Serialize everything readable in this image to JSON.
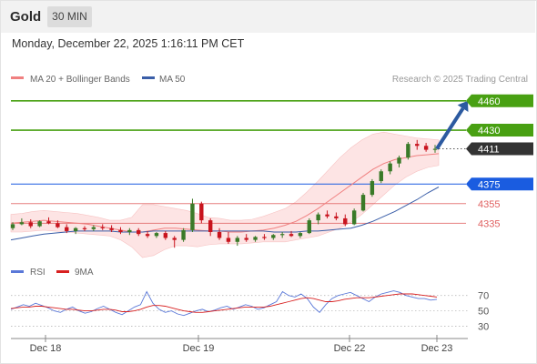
{
  "header": {
    "instrument": "Gold",
    "interval": "30 MIN",
    "timestamp": "Monday, December 22, 2025 1:16:11 PM CET"
  },
  "legend": {
    "ma20": "MA 20 + Bollinger Bands",
    "ma50": "MA 50",
    "credit": "Research © 2025 Trading Central",
    "rsi": "RSI",
    "rsi_ma": "9MA"
  },
  "colors": {
    "up": "#3a7a28",
    "down": "#c8141e",
    "ma20": "#f08080",
    "ma50": "#3a5ea8",
    "band_fill": "#fde0e0",
    "resistance": "#48a012",
    "pivot": "#1a5ce0",
    "support": "#e06060",
    "last": "#333333",
    "rsi_line": "#5a78d8",
    "rsi_ma_line": "#d82020"
  },
  "chart_data": [
    {
      "type": "line",
      "title": "",
      "x_ticks": [
        "Dec 18",
        "Dec 19",
        "Dec 22",
        "Dec 23"
      ],
      "y_ticks": [
        4460,
        4430,
        4411,
        4375,
        4355,
        4335
      ],
      "ylim": [
        4300,
        4470
      ],
      "levels": [
        {
          "value": 4460,
          "label": "4460",
          "role": "resistance"
        },
        {
          "value": 4430,
          "label": "4430",
          "role": "resistance"
        },
        {
          "value": 4411,
          "label": "4411",
          "role": "last"
        },
        {
          "value": 4375,
          "label": "4375",
          "role": "pivot"
        },
        {
          "value": 4355,
          "label": "4355",
          "role": "support"
        },
        {
          "value": 4335,
          "label": "4335",
          "role": "support"
        }
      ],
      "target_arrow": {
        "from": 4411,
        "to": 4460
      },
      "series": [
        {
          "name": "MA 20 + Bollinger Bands",
          "values": [
            4335,
            4336,
            4337,
            4338,
            4337,
            4336,
            4335,
            4334,
            4332,
            4330,
            4328,
            4326,
            4326,
            4328,
            4330,
            4330,
            4329,
            4328,
            4327,
            4327,
            4326,
            4326,
            4327,
            4328,
            4330,
            4333,
            4337,
            4343,
            4350,
            4358,
            4366,
            4374,
            4382,
            4390,
            4396,
            4400,
            4402,
            4404,
            4405,
            4406
          ],
          "upper": [
            4344,
            4345,
            4347,
            4348,
            4347,
            4346,
            4345,
            4343,
            4341,
            4338,
            4338,
            4341,
            4354,
            4354,
            4352,
            4350,
            4348,
            4345,
            4341,
            4340,
            4338,
            4338,
            4339,
            4342,
            4346,
            4350,
            4357,
            4367,
            4378,
            4390,
            4402,
            4412,
            4420,
            4426,
            4428,
            4426,
            4424,
            4422,
            4421,
            4420
          ],
          "lower": [
            4326,
            4326,
            4327,
            4328,
            4327,
            4326,
            4325,
            4324,
            4323,
            4322,
            4318,
            4311,
            4300,
            4302,
            4308,
            4312,
            4312,
            4311,
            4313,
            4314,
            4314,
            4314,
            4315,
            4316,
            4316,
            4316,
            4318,
            4320,
            4322,
            4326,
            4330,
            4336,
            4344,
            4354,
            4364,
            4374,
            4382,
            4388,
            4392,
            4394
          ]
        },
        {
          "name": "MA 50",
          "values": [
            4318,
            4320,
            4322,
            4324,
            4325,
            4326,
            4327,
            4327,
            4327,
            4327,
            4326,
            4326,
            4326,
            4327,
            4327,
            4327,
            4327,
            4327,
            4327,
            4327,
            4327,
            4327,
            4327,
            4327,
            4326,
            4326,
            4326,
            4327,
            4327,
            4328,
            4329,
            4330,
            4333,
            4337,
            4342,
            4347,
            4353,
            4359,
            4366,
            4372
          ]
        }
      ],
      "candles": [
        {
          "o": 4330,
          "h": 4336,
          "l": 4328,
          "c": 4334
        },
        {
          "o": 4334,
          "h": 4340,
          "l": 4333,
          "c": 4336
        },
        {
          "o": 4336,
          "h": 4339,
          "l": 4330,
          "c": 4332
        },
        {
          "o": 4332,
          "h": 4338,
          "l": 4331,
          "c": 4337
        },
        {
          "o": 4337,
          "h": 4341,
          "l": 4334,
          "c": 4335
        },
        {
          "o": 4335,
          "h": 4338,
          "l": 4330,
          "c": 4331
        },
        {
          "o": 4331,
          "h": 4334,
          "l": 4325,
          "c": 4327
        },
        {
          "o": 4327,
          "h": 4331,
          "l": 4324,
          "c": 4330
        },
        {
          "o": 4330,
          "h": 4332,
          "l": 4327,
          "c": 4329
        },
        {
          "o": 4329,
          "h": 4333,
          "l": 4327,
          "c": 4331
        },
        {
          "o": 4331,
          "h": 4334,
          "l": 4328,
          "c": 4330
        },
        {
          "o": 4330,
          "h": 4333,
          "l": 4326,
          "c": 4328
        },
        {
          "o": 4328,
          "h": 4331,
          "l": 4324,
          "c": 4326
        },
        {
          "o": 4326,
          "h": 4330,
          "l": 4323,
          "c": 4328
        },
        {
          "o": 4328,
          "h": 4330,
          "l": 4322,
          "c": 4324
        },
        {
          "o": 4324,
          "h": 4327,
          "l": 4320,
          "c": 4322
        },
        {
          "o": 4322,
          "h": 4326,
          "l": 4320,
          "c": 4325
        },
        {
          "o": 4325,
          "h": 4327,
          "l": 4318,
          "c": 4320
        },
        {
          "o": 4320,
          "h": 4322,
          "l": 4310,
          "c": 4318
        },
        {
          "o": 4318,
          "h": 4330,
          "l": 4316,
          "c": 4328
        },
        {
          "o": 4328,
          "h": 4360,
          "l": 4326,
          "c": 4355
        },
        {
          "o": 4355,
          "h": 4357,
          "l": 4335,
          "c": 4338
        },
        {
          "o": 4338,
          "h": 4340,
          "l": 4322,
          "c": 4326
        },
        {
          "o": 4326,
          "h": 4330,
          "l": 4318,
          "c": 4320
        },
        {
          "o": 4320,
          "h": 4326,
          "l": 4314,
          "c": 4316
        },
        {
          "o": 4316,
          "h": 4322,
          "l": 4312,
          "c": 4320
        },
        {
          "o": 4320,
          "h": 4324,
          "l": 4316,
          "c": 4318
        },
        {
          "o": 4318,
          "h": 4322,
          "l": 4316,
          "c": 4321
        },
        {
          "o": 4321,
          "h": 4324,
          "l": 4318,
          "c": 4320
        },
        {
          "o": 4320,
          "h": 4324,
          "l": 4318,
          "c": 4323
        },
        {
          "o": 4323,
          "h": 4326,
          "l": 4320,
          "c": 4324
        },
        {
          "o": 4324,
          "h": 4327,
          "l": 4321,
          "c": 4322
        },
        {
          "o": 4322,
          "h": 4326,
          "l": 4320,
          "c": 4325
        },
        {
          "o": 4325,
          "h": 4340,
          "l": 4324,
          "c": 4338
        },
        {
          "o": 4338,
          "h": 4346,
          "l": 4334,
          "c": 4344
        },
        {
          "o": 4344,
          "h": 4348,
          "l": 4340,
          "c": 4342
        },
        {
          "o": 4342,
          "h": 4346,
          "l": 4338,
          "c": 4340
        },
        {
          "o": 4340,
          "h": 4344,
          "l": 4332,
          "c": 4334
        },
        {
          "o": 4334,
          "h": 4350,
          "l": 4333,
          "c": 4348
        },
        {
          "o": 4348,
          "h": 4366,
          "l": 4347,
          "c": 4364
        },
        {
          "o": 4364,
          "h": 4380,
          "l": 4362,
          "c": 4378
        },
        {
          "o": 4378,
          "h": 4390,
          "l": 4376,
          "c": 4388
        },
        {
          "o": 4388,
          "h": 4398,
          "l": 4385,
          "c": 4396
        },
        {
          "o": 4396,
          "h": 4404,
          "l": 4392,
          "c": 4402
        },
        {
          "o": 4402,
          "h": 4418,
          "l": 4400,
          "c": 4416
        },
        {
          "o": 4416,
          "h": 4420,
          "l": 4410,
          "c": 4414
        },
        {
          "o": 4414,
          "h": 4417,
          "l": 4408,
          "c": 4410
        },
        {
          "o": 4410,
          "h": 4415,
          "l": 4407,
          "c": 4411
        }
      ]
    },
    {
      "type": "line",
      "title": "",
      "y_ticks": [
        70,
        50,
        30
      ],
      "ylim": [
        20,
        85
      ],
      "series": [
        {
          "name": "RSI",
          "values": [
            52,
            55,
            58,
            56,
            60,
            57,
            54,
            50,
            48,
            52,
            55,
            50,
            47,
            49,
            53,
            56,
            52,
            48,
            45,
            50,
            55,
            58,
            75,
            60,
            52,
            48,
            50,
            46,
            44,
            47,
            50,
            52,
            49,
            51,
            54,
            56,
            52,
            55,
            58,
            56,
            52,
            54,
            58,
            62,
            75,
            70,
            68,
            72,
            66,
            55,
            48,
            58,
            66,
            70,
            72,
            74,
            70,
            66,
            62,
            68,
            72,
            74,
            76,
            74,
            70,
            68,
            66,
            66,
            64,
            65
          ]
        },
        {
          "name": "9MA",
          "values": [
            53,
            54,
            55,
            55,
            56,
            56,
            55,
            54,
            53,
            52,
            52,
            51,
            50,
            50,
            51,
            52,
            52,
            51,
            49,
            49,
            50,
            52,
            55,
            57,
            57,
            56,
            54,
            52,
            50,
            49,
            48,
            48,
            49,
            50,
            51,
            52,
            53,
            54,
            55,
            55,
            55,
            55,
            56,
            58,
            60,
            62,
            64,
            66,
            67,
            66,
            64,
            62,
            62,
            63,
            65,
            66,
            67,
            67,
            67,
            68,
            69,
            70,
            71,
            72,
            72,
            72,
            71,
            70,
            69,
            68
          ]
        }
      ]
    }
  ]
}
